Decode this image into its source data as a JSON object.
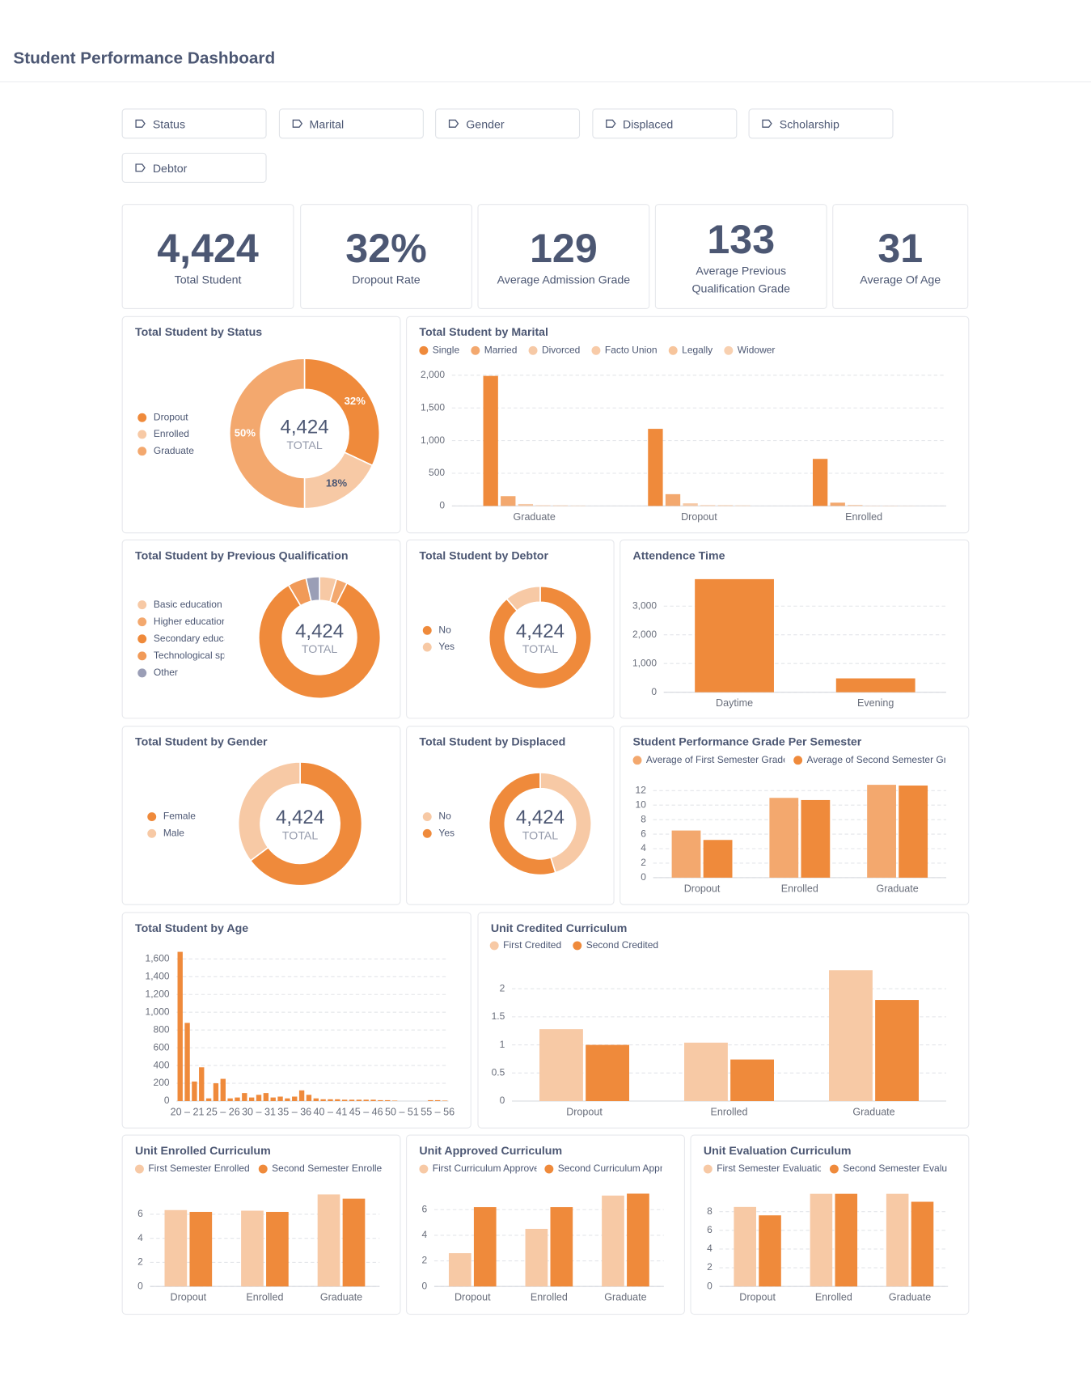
{
  "header": {
    "title": "Student Performance Dashboard"
  },
  "filters": [
    "Status",
    "Marital",
    "Gender",
    "Displaced",
    "Scholarship",
    "Debtor"
  ],
  "kpis": [
    {
      "value": "4,424",
      "label": "Total Student"
    },
    {
      "value": "32%",
      "label": "Dropout Rate"
    },
    {
      "value": "129",
      "label": "Average Admission Grade"
    },
    {
      "value": "133",
      "label": "Average Previous Qualification Grade"
    },
    {
      "value": "31",
      "label": "Average Of Age"
    }
  ],
  "chart_data": [
    {
      "type": "donut",
      "title": "Total Student by Status",
      "categories": [
        "Dropout",
        "Enrolled",
        "Graduate"
      ],
      "values": [
        32,
        18,
        50
      ],
      "value_labels": [
        "32%",
        "18%",
        "50%"
      ],
      "colors": [
        "#ef8a3b",
        "#f7c9a5",
        "#f3a86e"
      ],
      "center_label": "4,424",
      "center_caption": "TOTAL"
    },
    {
      "type": "bar",
      "title": "Total Student by Marital",
      "categories": [
        "Graduate",
        "Dropout",
        "Enrolled"
      ],
      "series": [
        {
          "name": "Single",
          "color": "#ef8a3b",
          "values": [
            1990,
            1180,
            720
          ]
        },
        {
          "name": "Married",
          "color": "#f3a86e",
          "values": [
            150,
            180,
            50
          ]
        },
        {
          "name": "Divorced",
          "color": "#f6c9a6",
          "values": [
            30,
            40,
            15
          ]
        },
        {
          "name": "Facto Union",
          "color": "#f8cba8",
          "values": [
            10,
            12,
            5
          ]
        },
        {
          "name": "Legally",
          "color": "#f7c59c",
          "values": [
            8,
            10,
            4
          ]
        },
        {
          "name": "Widower",
          "color": "#f8d0b0",
          "values": [
            6,
            8,
            3
          ]
        }
      ],
      "ylim": [
        0,
        2000
      ],
      "yticks": [
        0,
        500,
        {
          "value": 1000,
          "label": "1,000"
        },
        {
          "value": 1500,
          "label": "1,500"
        },
        {
          "value": 2000,
          "label": "2,000"
        }
      ],
      "grid": true
    },
    {
      "type": "donut",
      "title": "Total Student by Previous Qualification",
      "categories": [
        "Basic education",
        "Higher education",
        "Secondary education",
        "Technological specialization",
        "Other"
      ],
      "values": [
        200,
        130,
        3717,
        219,
        158
      ],
      "colors": [
        "#f7c9a5",
        "#f3a86e",
        "#ef8a3b",
        "#f19a58",
        "#9a9eb6"
      ],
      "center_label": "4,424",
      "center_caption": "TOTAL"
    },
    {
      "type": "donut",
      "title": "Total Student by Debtor",
      "categories": [
        "No",
        "Yes"
      ],
      "values": [
        3921,
        503
      ],
      "colors": [
        "#ef8a3b",
        "#f7c9a5"
      ],
      "center_label": "4,424",
      "center_caption": "TOTAL"
    },
    {
      "type": "bar",
      "title": "Attendence Time",
      "categories": [
        "Daytime",
        "Evening"
      ],
      "values": [
        3941,
        483
      ],
      "color": "#ef8a3b",
      "ylim": [
        0,
        4000
      ],
      "yticks": [
        0,
        {
          "value": 1000,
          "label": "1,000"
        },
        {
          "value": 2000,
          "label": "2,000"
        },
        {
          "value": 3000,
          "label": "3,000"
        }
      ],
      "grid": true
    },
    {
      "type": "donut",
      "title": "Total Student by Gender",
      "categories": [
        "Female",
        "Male"
      ],
      "values": [
        2868,
        1556
      ],
      "colors": [
        "#ef8a3b",
        "#f7c9a5"
      ],
      "center_label": "4,424",
      "center_caption": "TOTAL"
    },
    {
      "type": "donut",
      "title": "Total Student by Displaced",
      "categories": [
        "No",
        "Yes"
      ],
      "values": [
        1998,
        2426
      ],
      "colors": [
        "#f7c9a5",
        "#ef8a3b"
      ],
      "center_label": "4,424",
      "center_caption": "TOTAL"
    },
    {
      "type": "bar",
      "title": "Student Performance Grade Per Semester",
      "categories": [
        "Dropout",
        "Enrolled",
        "Graduate"
      ],
      "series": [
        {
          "name": "Average of First Semester Grade",
          "color": "#f3a86e",
          "values": [
            6.5,
            11.0,
            12.8
          ]
        },
        {
          "name": "Average of Second Semester Grade",
          "color": "#ef8a3b",
          "values": [
            5.2,
            10.7,
            12.7
          ]
        }
      ],
      "ylim": [
        0,
        14
      ],
      "yticks": [
        0,
        2,
        4,
        6,
        8,
        10,
        12
      ],
      "grid": true
    },
    {
      "type": "bar",
      "title": "Total Student by Age",
      "categories": [
        null,
        "20 – 21",
        null,
        null,
        null,
        null,
        "25 – 26",
        null,
        null,
        null,
        null,
        "30 – 31",
        null,
        null,
        null,
        null,
        "35 – 36",
        null,
        null,
        null,
        null,
        "40 – 41",
        null,
        null,
        null,
        null,
        "45 – 46",
        null,
        null,
        null,
        null,
        "50 – 51",
        null,
        null,
        null,
        null,
        "55 – 56",
        null
      ],
      "values": [
        1680,
        880,
        220,
        380,
        30,
        200,
        250,
        30,
        40,
        90,
        40,
        70,
        90,
        40,
        50,
        30,
        50,
        120,
        70,
        30,
        20,
        20,
        20,
        15,
        15,
        15,
        15,
        15,
        10,
        10,
        5,
        0,
        0,
        0,
        0,
        10,
        10,
        5
      ],
      "color": "#ef8a3b",
      "ylim": [
        0,
        1700
      ],
      "yticks": [
        0,
        200,
        400,
        600,
        800,
        {
          "value": 1000,
          "label": "1,000"
        },
        {
          "value": 1200,
          "label": "1,200"
        },
        {
          "value": 1400,
          "label": "1,400"
        },
        {
          "value": 1600,
          "label": "1,600"
        }
      ],
      "grid": true
    },
    {
      "type": "bar",
      "title": "Unit Credited Curriculum",
      "categories": [
        "Dropout",
        "Enrolled",
        "Graduate"
      ],
      "series": [
        {
          "name": "First Credited",
          "color": "#f7c9a5",
          "values": [
            1.28,
            1.04,
            2.33
          ]
        },
        {
          "name": "Second Credited",
          "color": "#ef8a3b",
          "values": [
            1.0,
            0.74,
            1.8
          ]
        }
      ],
      "ylim": [
        0,
        2.5
      ],
      "yticks": [
        0,
        0.5,
        1,
        1.5,
        2
      ],
      "grid": true
    },
    {
      "type": "bar",
      "title": "Unit Enrolled Curriculum",
      "categories": [
        "Dropout",
        "Enrolled",
        "Graduate"
      ],
      "series": [
        {
          "name": "First Semester Enrolled",
          "color": "#f7c9a5",
          "values": [
            6.35,
            6.3,
            7.65
          ]
        },
        {
          "name": "Second Semester Enrolled",
          "color": "#ef8a3b",
          "values": [
            6.2,
            6.2,
            7.3
          ]
        }
      ],
      "ylim": [
        0,
        8
      ],
      "yticks": [
        0,
        2,
        4,
        6
      ],
      "grid": true
    },
    {
      "type": "bar",
      "title": "Unit Approved Curriculum",
      "categories": [
        "Dropout",
        "Enrolled",
        "Graduate"
      ],
      "series": [
        {
          "name": "First Curriculum Approved",
          "color": "#f7c9a5",
          "values": [
            2.6,
            4.5,
            7.1
          ]
        },
        {
          "name": "Second Curriculum Approved",
          "color": "#ef8a3b",
          "values": [
            6.2,
            6.2,
            7.25
          ]
        }
      ],
      "ylim": [
        0,
        8
      ],
      "yticks": [
        0,
        2,
        4,
        6
      ],
      "grid": true
    },
    {
      "type": "bar",
      "title": "Unit Evaluation Curriculum",
      "categories": [
        "Dropout",
        "Enrolled",
        "Graduate"
      ],
      "series": [
        {
          "name": "First Semester Evaluation",
          "color": "#f7c9a5",
          "values": [
            8.5,
            9.9,
            9.9
          ]
        },
        {
          "name": "Second Semester Evaluation",
          "color": "#ef8a3b",
          "values": [
            7.6,
            9.9,
            9.05
          ]
        }
      ],
      "ylim": [
        0,
        10
      ],
      "yticks": [
        0,
        2,
        4,
        6,
        8
      ],
      "grid": true
    }
  ]
}
